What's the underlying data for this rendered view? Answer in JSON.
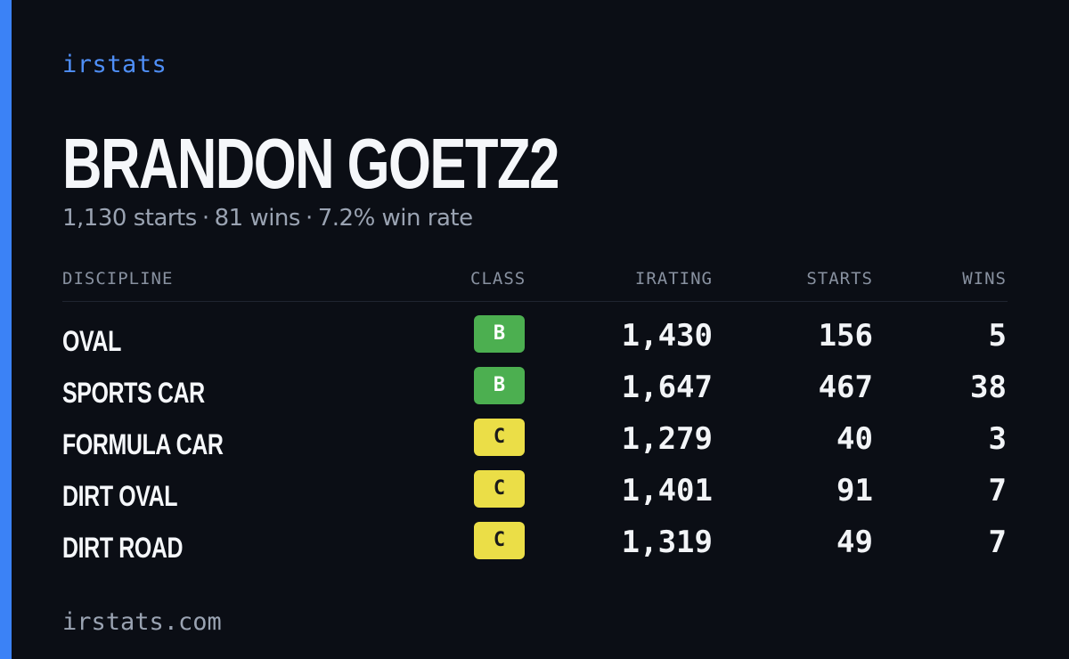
{
  "brand": "irstats",
  "driver": {
    "name": "BRANDON GOETZ2"
  },
  "summary": {
    "starts": "1,130 starts",
    "wins": "81 wins",
    "win_rate": "7.2% win rate",
    "separator": "·"
  },
  "table": {
    "headers": {
      "discipline": "DISCIPLINE",
      "class": "CLASS",
      "irating": "IRATING",
      "starts": "STARTS",
      "wins": "WINS"
    },
    "rows": [
      {
        "discipline": "OVAL",
        "class": "B",
        "irating": "1,430",
        "starts": "156",
        "wins": "5"
      },
      {
        "discipline": "SPORTS CAR",
        "class": "B",
        "irating": "1,647",
        "starts": "467",
        "wins": "38"
      },
      {
        "discipline": "FORMULA CAR",
        "class": "C",
        "irating": "1,279",
        "starts": "40",
        "wins": "3"
      },
      {
        "discipline": "DIRT OVAL",
        "class": "C",
        "irating": "1,401",
        "starts": "91",
        "wins": "7"
      },
      {
        "discipline": "DIRT ROAD",
        "class": "C",
        "irating": "1,319",
        "starts": "49",
        "wins": "7"
      }
    ]
  },
  "footer": "irstats.com",
  "colors": {
    "background": "#0b0e15",
    "accent": "#3b82f6",
    "class_b": "#4caf50",
    "class_c": "#ebde47"
  }
}
